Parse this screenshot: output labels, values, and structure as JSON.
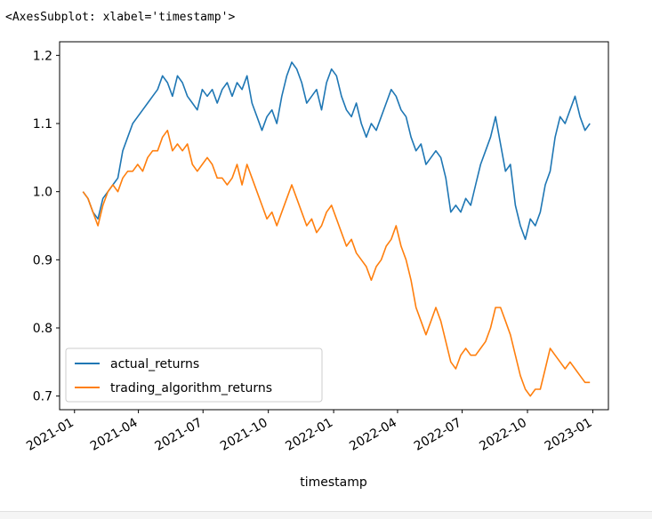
{
  "output_repr": "<AxesSubplot: xlabel='timestamp'>",
  "chart_data": {
    "type": "line",
    "xlabel": "timestamp",
    "ylabel": "",
    "title": "",
    "xlim": [
      "2020-12-11",
      "2023-01-23"
    ],
    "ylim": [
      0.68,
      1.22
    ],
    "x_ticks": [
      "2021-01",
      "2021-04",
      "2021-07",
      "2021-10",
      "2022-01",
      "2022-04",
      "2022-07",
      "2022-10",
      "2023-01"
    ],
    "y_ticks": [
      0.7,
      0.8,
      0.9,
      1.0,
      1.1,
      1.2
    ],
    "y_tick_labels": [
      "0.7",
      "0.8",
      "0.9",
      "1.0",
      "1.1",
      "1.2"
    ],
    "legend_position": "lower-left",
    "grid": false,
    "series": [
      {
        "name": "actual_returns",
        "color": "#1f77b4",
        "points": [
          [
            "2021-01-13",
            1.0
          ],
          [
            "2021-01-20",
            0.99
          ],
          [
            "2021-01-27",
            0.97
          ],
          [
            "2021-02-03",
            0.96
          ],
          [
            "2021-02-10",
            0.99
          ],
          [
            "2021-02-17",
            1.0
          ],
          [
            "2021-02-24",
            1.01
          ],
          [
            "2021-03-03",
            1.02
          ],
          [
            "2021-03-10",
            1.06
          ],
          [
            "2021-03-17",
            1.08
          ],
          [
            "2021-03-24",
            1.1
          ],
          [
            "2021-03-31",
            1.11
          ],
          [
            "2021-04-07",
            1.12
          ],
          [
            "2021-04-14",
            1.13
          ],
          [
            "2021-04-21",
            1.14
          ],
          [
            "2021-04-28",
            1.15
          ],
          [
            "2021-05-05",
            1.17
          ],
          [
            "2021-05-12",
            1.16
          ],
          [
            "2021-05-19",
            1.14
          ],
          [
            "2021-05-26",
            1.17
          ],
          [
            "2021-06-02",
            1.16
          ],
          [
            "2021-06-09",
            1.14
          ],
          [
            "2021-06-16",
            1.13
          ],
          [
            "2021-06-23",
            1.12
          ],
          [
            "2021-06-30",
            1.15
          ],
          [
            "2021-07-07",
            1.14
          ],
          [
            "2021-07-14",
            1.15
          ],
          [
            "2021-07-21",
            1.13
          ],
          [
            "2021-07-28",
            1.15
          ],
          [
            "2021-08-04",
            1.16
          ],
          [
            "2021-08-11",
            1.14
          ],
          [
            "2021-08-18",
            1.16
          ],
          [
            "2021-08-25",
            1.15
          ],
          [
            "2021-09-01",
            1.17
          ],
          [
            "2021-09-08",
            1.13
          ],
          [
            "2021-09-15",
            1.11
          ],
          [
            "2021-09-22",
            1.09
          ],
          [
            "2021-09-29",
            1.11
          ],
          [
            "2021-10-06",
            1.12
          ],
          [
            "2021-10-13",
            1.1
          ],
          [
            "2021-10-20",
            1.14
          ],
          [
            "2021-10-27",
            1.17
          ],
          [
            "2021-11-03",
            1.19
          ],
          [
            "2021-11-10",
            1.18
          ],
          [
            "2021-11-17",
            1.16
          ],
          [
            "2021-11-24",
            1.13
          ],
          [
            "2021-12-01",
            1.14
          ],
          [
            "2021-12-08",
            1.15
          ],
          [
            "2021-12-15",
            1.12
          ],
          [
            "2021-12-22",
            1.16
          ],
          [
            "2021-12-29",
            1.18
          ],
          [
            "2022-01-05",
            1.17
          ],
          [
            "2022-01-12",
            1.14
          ],
          [
            "2022-01-19",
            1.12
          ],
          [
            "2022-01-26",
            1.11
          ],
          [
            "2022-02-02",
            1.13
          ],
          [
            "2022-02-09",
            1.1
          ],
          [
            "2022-02-16",
            1.08
          ],
          [
            "2022-02-23",
            1.1
          ],
          [
            "2022-03-02",
            1.09
          ],
          [
            "2022-03-09",
            1.11
          ],
          [
            "2022-03-16",
            1.13
          ],
          [
            "2022-03-23",
            1.15
          ],
          [
            "2022-03-30",
            1.14
          ],
          [
            "2022-04-06",
            1.12
          ],
          [
            "2022-04-13",
            1.11
          ],
          [
            "2022-04-20",
            1.08
          ],
          [
            "2022-04-27",
            1.06
          ],
          [
            "2022-05-04",
            1.07
          ],
          [
            "2022-05-11",
            1.04
          ],
          [
            "2022-05-18",
            1.05
          ],
          [
            "2022-05-25",
            1.06
          ],
          [
            "2022-06-01",
            1.05
          ],
          [
            "2022-06-08",
            1.02
          ],
          [
            "2022-06-15",
            0.97
          ],
          [
            "2022-06-22",
            0.98
          ],
          [
            "2022-06-29",
            0.97
          ],
          [
            "2022-07-06",
            0.99
          ],
          [
            "2022-07-13",
            0.98
          ],
          [
            "2022-07-20",
            1.01
          ],
          [
            "2022-07-27",
            1.04
          ],
          [
            "2022-08-03",
            1.06
          ],
          [
            "2022-08-10",
            1.08
          ],
          [
            "2022-08-17",
            1.11
          ],
          [
            "2022-08-24",
            1.07
          ],
          [
            "2022-08-31",
            1.03
          ],
          [
            "2022-09-07",
            1.04
          ],
          [
            "2022-09-14",
            0.98
          ],
          [
            "2022-09-21",
            0.95
          ],
          [
            "2022-09-28",
            0.93
          ],
          [
            "2022-10-05",
            0.96
          ],
          [
            "2022-10-12",
            0.95
          ],
          [
            "2022-10-19",
            0.97
          ],
          [
            "2022-10-26",
            1.01
          ],
          [
            "2022-11-02",
            1.03
          ],
          [
            "2022-11-09",
            1.08
          ],
          [
            "2022-11-16",
            1.11
          ],
          [
            "2022-11-23",
            1.1
          ],
          [
            "2022-11-30",
            1.12
          ],
          [
            "2022-12-07",
            1.14
          ],
          [
            "2022-12-14",
            1.11
          ],
          [
            "2022-12-21",
            1.09
          ],
          [
            "2022-12-28",
            1.1
          ]
        ]
      },
      {
        "name": "trading_algorithm_returns",
        "color": "#ff7f0e",
        "points": [
          [
            "2021-01-13",
            1.0
          ],
          [
            "2021-01-20",
            0.99
          ],
          [
            "2021-01-27",
            0.97
          ],
          [
            "2021-02-03",
            0.95
          ],
          [
            "2021-02-10",
            0.98
          ],
          [
            "2021-02-17",
            1.0
          ],
          [
            "2021-02-24",
            1.01
          ],
          [
            "2021-03-03",
            1.0
          ],
          [
            "2021-03-10",
            1.02
          ],
          [
            "2021-03-17",
            1.03
          ],
          [
            "2021-03-24",
            1.03
          ],
          [
            "2021-03-31",
            1.04
          ],
          [
            "2021-04-07",
            1.03
          ],
          [
            "2021-04-14",
            1.05
          ],
          [
            "2021-04-21",
            1.06
          ],
          [
            "2021-04-28",
            1.06
          ],
          [
            "2021-05-05",
            1.08
          ],
          [
            "2021-05-12",
            1.09
          ],
          [
            "2021-05-19",
            1.06
          ],
          [
            "2021-05-26",
            1.07
          ],
          [
            "2021-06-02",
            1.06
          ],
          [
            "2021-06-09",
            1.07
          ],
          [
            "2021-06-16",
            1.04
          ],
          [
            "2021-06-23",
            1.03
          ],
          [
            "2021-06-30",
            1.04
          ],
          [
            "2021-07-07",
            1.05
          ],
          [
            "2021-07-14",
            1.04
          ],
          [
            "2021-07-21",
            1.02
          ],
          [
            "2021-07-28",
            1.02
          ],
          [
            "2021-08-04",
            1.01
          ],
          [
            "2021-08-11",
            1.02
          ],
          [
            "2021-08-18",
            1.04
          ],
          [
            "2021-08-25",
            1.01
          ],
          [
            "2021-09-01",
            1.04
          ],
          [
            "2021-09-08",
            1.02
          ],
          [
            "2021-09-15",
            1.0
          ],
          [
            "2021-09-22",
            0.98
          ],
          [
            "2021-09-29",
            0.96
          ],
          [
            "2021-10-06",
            0.97
          ],
          [
            "2021-10-13",
            0.95
          ],
          [
            "2021-10-20",
            0.97
          ],
          [
            "2021-10-27",
            0.99
          ],
          [
            "2021-11-03",
            1.01
          ],
          [
            "2021-11-10",
            0.99
          ],
          [
            "2021-11-17",
            0.97
          ],
          [
            "2021-11-24",
            0.95
          ],
          [
            "2021-12-01",
            0.96
          ],
          [
            "2021-12-08",
            0.94
          ],
          [
            "2021-12-15",
            0.95
          ],
          [
            "2021-12-22",
            0.97
          ],
          [
            "2021-12-29",
            0.98
          ],
          [
            "2022-01-05",
            0.96
          ],
          [
            "2022-01-12",
            0.94
          ],
          [
            "2022-01-19",
            0.92
          ],
          [
            "2022-01-26",
            0.93
          ],
          [
            "2022-02-02",
            0.91
          ],
          [
            "2022-02-09",
            0.9
          ],
          [
            "2022-02-16",
            0.89
          ],
          [
            "2022-02-23",
            0.87
          ],
          [
            "2022-03-02",
            0.89
          ],
          [
            "2022-03-09",
            0.9
          ],
          [
            "2022-03-16",
            0.92
          ],
          [
            "2022-03-23",
            0.93
          ],
          [
            "2022-03-30",
            0.95
          ],
          [
            "2022-04-06",
            0.92
          ],
          [
            "2022-04-13",
            0.9
          ],
          [
            "2022-04-20",
            0.87
          ],
          [
            "2022-04-27",
            0.83
          ],
          [
            "2022-05-04",
            0.81
          ],
          [
            "2022-05-11",
            0.79
          ],
          [
            "2022-05-18",
            0.81
          ],
          [
            "2022-05-25",
            0.83
          ],
          [
            "2022-06-01",
            0.81
          ],
          [
            "2022-06-08",
            0.78
          ],
          [
            "2022-06-15",
            0.75
          ],
          [
            "2022-06-22",
            0.74
          ],
          [
            "2022-06-29",
            0.76
          ],
          [
            "2022-07-06",
            0.77
          ],
          [
            "2022-07-13",
            0.76
          ],
          [
            "2022-07-20",
            0.76
          ],
          [
            "2022-07-27",
            0.77
          ],
          [
            "2022-08-03",
            0.78
          ],
          [
            "2022-08-10",
            0.8
          ],
          [
            "2022-08-17",
            0.83
          ],
          [
            "2022-08-24",
            0.83
          ],
          [
            "2022-08-31",
            0.81
          ],
          [
            "2022-09-07",
            0.79
          ],
          [
            "2022-09-14",
            0.76
          ],
          [
            "2022-09-21",
            0.73
          ],
          [
            "2022-09-28",
            0.71
          ],
          [
            "2022-10-05",
            0.7
          ],
          [
            "2022-10-12",
            0.71
          ],
          [
            "2022-10-19",
            0.71
          ],
          [
            "2022-10-26",
            0.74
          ],
          [
            "2022-11-02",
            0.77
          ],
          [
            "2022-11-09",
            0.76
          ],
          [
            "2022-11-16",
            0.75
          ],
          [
            "2022-11-23",
            0.74
          ],
          [
            "2022-11-30",
            0.75
          ],
          [
            "2022-12-07",
            0.74
          ],
          [
            "2022-12-14",
            0.73
          ],
          [
            "2022-12-21",
            0.72
          ],
          [
            "2022-12-28",
            0.72
          ]
        ]
      }
    ]
  }
}
